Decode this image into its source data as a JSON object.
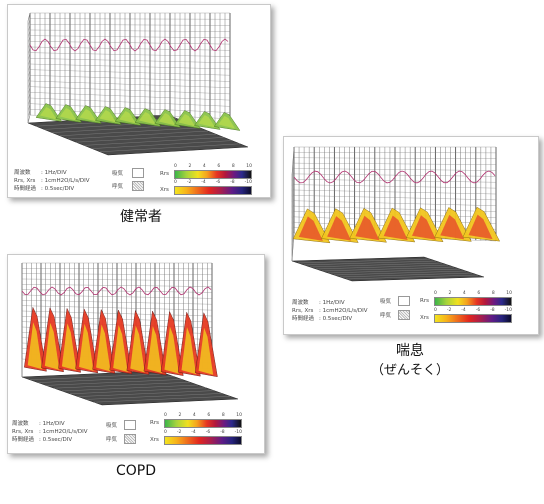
{
  "legend": {
    "freq_label": "周波数",
    "freq_value": ": 1Hz/DIV",
    "axis_label": "Rrs, Xrs",
    "axis_value": ": 1cmH2O/L/s/DIV",
    "time_label": "時間経過",
    "time_value": ": 0.5sec/DIV",
    "inspiration": "吸気",
    "expiration": "呼気",
    "rrs": "Rrs",
    "xrs": "Xrs",
    "rrs_ticks": [
      "0",
      "2",
      "4",
      "6",
      "8",
      "10"
    ],
    "xrs_ticks": [
      "0",
      "-2",
      "-4",
      "-6",
      "-8",
      "-10"
    ]
  },
  "captions": {
    "healthy": "健常者",
    "asthma": "喘息",
    "asthma_reading": "（ぜんそく）",
    "copd": "COPD"
  },
  "colors": {
    "healthy_surface": "#8bc34a",
    "asthma_surface": "#f2c61e",
    "copd_surface": "#e63a22",
    "trace": "#b0306e",
    "grid": "#555555"
  }
}
